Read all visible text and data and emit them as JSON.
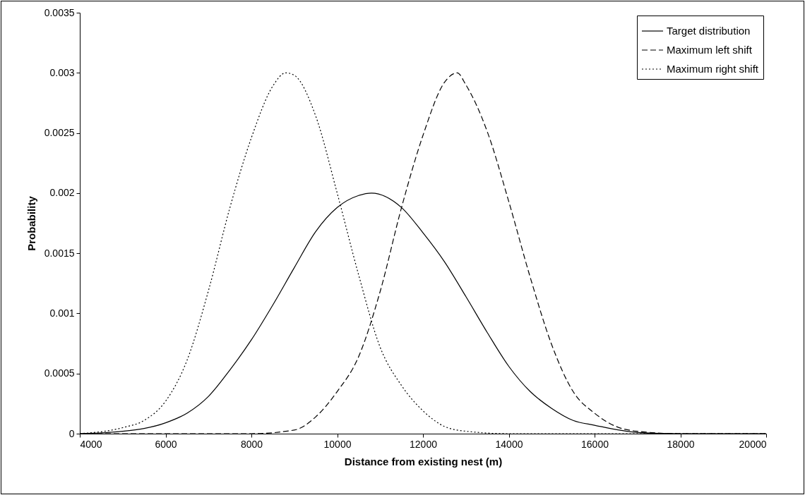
{
  "chart_data": {
    "type": "line",
    "xlabel": "Distance from existing nest (m)",
    "ylabel": "Probability",
    "xlim": [
      4000,
      20000
    ],
    "xticks": [
      4000,
      6000,
      8000,
      10000,
      12000,
      14000,
      16000,
      18000,
      20000
    ],
    "ylim": [
      0,
      0.0035
    ],
    "yticks": [
      0,
      0.0005,
      0.001,
      0.0015,
      0.002,
      0.0025,
      0.003,
      0.0035
    ],
    "grid": false,
    "legend": "top right",
    "marker": "none",
    "series": [
      {
        "name": "Target distribution",
        "color": "#000000",
        "line_style": "solid",
        "x": [
          4000,
          5000,
          6000,
          6500,
          7000,
          7500,
          8000,
          8500,
          9000,
          9500,
          10000,
          10500,
          10800,
          11500,
          12000,
          12500,
          13000,
          13500,
          14000,
          14500,
          15000,
          15500,
          16000,
          17000,
          18000,
          20000
        ],
        "values": [
          0,
          2e-05,
          9e-05,
          0.00017,
          0.00031,
          0.00053,
          0.00078,
          0.00107,
          0.00138,
          0.00168,
          0.00188,
          0.00198,
          0.002,
          0.00188,
          0.00167,
          0.00143,
          0.00114,
          0.00084,
          0.00056,
          0.00035,
          0.00021,
          0.00011,
          7e-05,
          1e-05,
          0,
          0
        ]
      },
      {
        "name": "Maximum left shift",
        "color": "#000000",
        "line_style": "dashed",
        "x": [
          4000,
          8000,
          9000,
          9500,
          10000,
          10500,
          11000,
          11500,
          12000,
          12500,
          12800,
          13000,
          13500,
          14000,
          14500,
          15000,
          15500,
          16000,
          16500,
          17000,
          18000,
          20000
        ],
        "values": [
          0,
          0,
          3e-05,
          0.00014,
          0.00035,
          0.00064,
          0.00118,
          0.00188,
          0.00248,
          0.00292,
          0.003,
          0.0029,
          0.00251,
          0.00193,
          0.0013,
          0.00074,
          0.00035,
          0.00017,
          6e-05,
          2e-05,
          0,
          0
        ]
      },
      {
        "name": "Maximum right shift",
        "color": "#000000",
        "line_style": "dotted",
        "x": [
          4000,
          5000,
          5500,
          6000,
          6500,
          7000,
          7500,
          8000,
          8500,
          8800,
          9000,
          9500,
          10000,
          10500,
          11000,
          11500,
          12000,
          12500,
          13000,
          14000,
          20000
        ],
        "values": [
          0,
          5e-05,
          0.00011,
          0.00027,
          0.00061,
          0.00119,
          0.00188,
          0.00246,
          0.00289,
          0.003,
          0.00298,
          0.00264,
          0.002,
          0.00132,
          0.00072,
          0.0004,
          0.00019,
          6e-05,
          2e-05,
          0,
          0
        ]
      }
    ]
  }
}
